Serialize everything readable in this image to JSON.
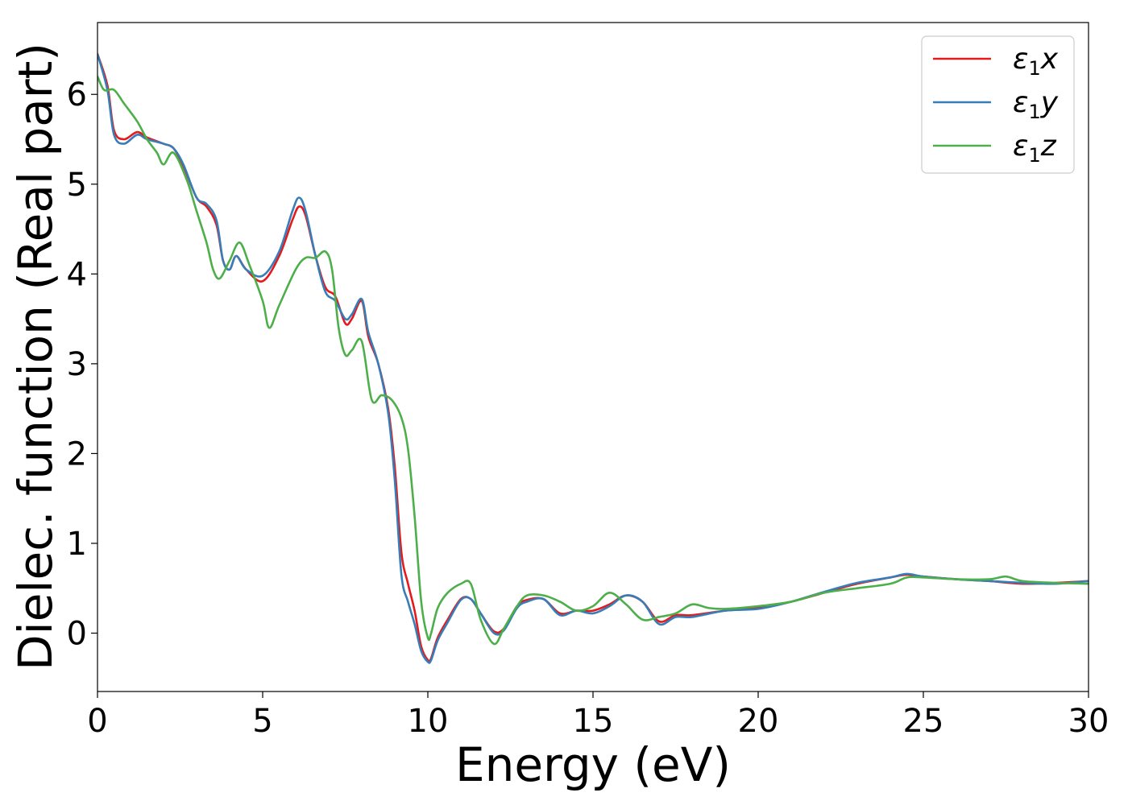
{
  "chart_data": {
    "type": "line",
    "xlabel": "Energy (eV)",
    "ylabel": "Dielec. function (Real part)",
    "xlim": [
      0,
      30
    ],
    "ylim": [
      -0.65,
      6.8
    ],
    "xticks": [
      0,
      5,
      10,
      15,
      20,
      25,
      30
    ],
    "yticks": [
      0,
      1,
      2,
      3,
      4,
      5,
      6
    ],
    "grid": false,
    "legend_position": "top-right",
    "series": [
      {
        "name": "ε1x",
        "legend": {
          "base": "ε",
          "sub": "1",
          "suffix": "x"
        },
        "color": "#e41a1c",
        "x": [
          0,
          0.3,
          0.5,
          0.8,
          1.2,
          1.5,
          2.0,
          2.3,
          2.6,
          3.0,
          3.3,
          3.6,
          3.8,
          4.0,
          4.2,
          4.5,
          5.0,
          5.5,
          5.9,
          6.1,
          6.3,
          6.6,
          6.9,
          7.2,
          7.5,
          7.7,
          8.0,
          8.2,
          8.5,
          8.8,
          9.0,
          9.2,
          9.4,
          9.6,
          9.8,
          10.0,
          10.1,
          10.3,
          10.6,
          11.0,
          11.3,
          11.6,
          12.0,
          12.3,
          12.7,
          13.0,
          13.5,
          14.0,
          14.5,
          15.0,
          15.5,
          16.0,
          16.5,
          17.0,
          17.5,
          18.0,
          19.0,
          20.0,
          21.0,
          22.0,
          23.0,
          24.0,
          24.5,
          25.0,
          26.0,
          27.0,
          28.0,
          29.0,
          30.0
        ],
        "y": [
          6.45,
          6.1,
          5.6,
          5.5,
          5.58,
          5.52,
          5.45,
          5.4,
          5.2,
          4.85,
          4.75,
          4.55,
          4.15,
          4.05,
          4.2,
          4.05,
          3.92,
          4.2,
          4.6,
          4.75,
          4.65,
          4.2,
          3.85,
          3.75,
          3.45,
          3.5,
          3.7,
          3.3,
          3.0,
          2.5,
          1.85,
          0.9,
          0.55,
          0.25,
          -0.15,
          -0.3,
          -0.28,
          -0.05,
          0.15,
          0.38,
          0.38,
          0.22,
          0.02,
          0.05,
          0.3,
          0.37,
          0.38,
          0.22,
          0.25,
          0.25,
          0.32,
          0.42,
          0.35,
          0.13,
          0.2,
          0.2,
          0.25,
          0.28,
          0.35,
          0.45,
          0.55,
          0.62,
          0.65,
          0.63,
          0.6,
          0.58,
          0.55,
          0.56,
          0.58
        ]
      },
      {
        "name": "ε1y",
        "legend": {
          "base": "ε",
          "sub": "1",
          "suffix": "y"
        },
        "color": "#377eb8",
        "x": [
          0,
          0.3,
          0.5,
          0.8,
          1.2,
          1.5,
          2.0,
          2.3,
          2.6,
          3.0,
          3.3,
          3.6,
          3.8,
          4.0,
          4.2,
          4.5,
          5.0,
          5.5,
          5.9,
          6.1,
          6.3,
          6.6,
          6.9,
          7.2,
          7.5,
          7.7,
          8.0,
          8.2,
          8.5,
          8.8,
          9.0,
          9.2,
          9.4,
          9.6,
          9.8,
          10.0,
          10.1,
          10.3,
          10.6,
          11.0,
          11.3,
          11.6,
          12.0,
          12.3,
          12.7,
          13.0,
          13.5,
          14.0,
          14.5,
          15.0,
          15.5,
          16.0,
          16.5,
          17.0,
          17.5,
          18.0,
          19.0,
          20.0,
          21.0,
          22.0,
          23.0,
          24.0,
          24.5,
          25.0,
          26.0,
          27.0,
          28.0,
          29.0,
          30.0
        ],
        "y": [
          6.45,
          6.05,
          5.55,
          5.45,
          5.55,
          5.5,
          5.45,
          5.4,
          5.22,
          4.85,
          4.78,
          4.6,
          4.15,
          4.05,
          4.2,
          4.05,
          3.98,
          4.25,
          4.7,
          4.85,
          4.7,
          4.2,
          3.8,
          3.7,
          3.5,
          3.55,
          3.72,
          3.35,
          3.0,
          2.45,
          1.7,
          0.65,
          0.35,
          0.1,
          -0.2,
          -0.32,
          -0.3,
          -0.08,
          0.12,
          0.37,
          0.38,
          0.22,
          0.0,
          0.03,
          0.28,
          0.35,
          0.38,
          0.2,
          0.25,
          0.22,
          0.3,
          0.42,
          0.35,
          0.1,
          0.18,
          0.18,
          0.25,
          0.27,
          0.35,
          0.46,
          0.56,
          0.62,
          0.66,
          0.63,
          0.6,
          0.58,
          0.56,
          0.55,
          0.58
        ]
      },
      {
        "name": "ε1z",
        "legend": {
          "base": "ε",
          "sub": "1",
          "suffix": "z"
        },
        "color": "#4daf4a",
        "x": [
          0,
          0.2,
          0.5,
          0.8,
          1.2,
          1.5,
          1.8,
          2.0,
          2.3,
          2.7,
          3.0,
          3.3,
          3.5,
          3.7,
          4.0,
          4.3,
          4.6,
          5.0,
          5.2,
          5.5,
          6.0,
          6.3,
          6.6,
          6.9,
          7.1,
          7.3,
          7.5,
          7.7,
          8.0,
          8.3,
          8.6,
          8.9,
          9.2,
          9.4,
          9.6,
          9.8,
          10.0,
          10.1,
          10.3,
          10.6,
          11.0,
          11.3,
          11.6,
          12.0,
          12.3,
          12.7,
          13.0,
          13.5,
          14.0,
          14.5,
          15.0,
          15.5,
          16.0,
          16.5,
          17.0,
          17.5,
          18.0,
          18.5,
          19.0,
          20.0,
          21.0,
          22.0,
          23.0,
          24.0,
          24.5,
          25.0,
          26.0,
          27.0,
          27.5,
          28.0,
          29.0,
          30.0
        ],
        "y": [
          6.2,
          6.05,
          6.05,
          5.9,
          5.7,
          5.5,
          5.35,
          5.22,
          5.35,
          5.05,
          4.7,
          4.35,
          4.05,
          3.95,
          4.15,
          4.35,
          4.1,
          3.7,
          3.4,
          3.65,
          4.05,
          4.18,
          4.18,
          4.25,
          4.05,
          3.4,
          3.1,
          3.15,
          3.25,
          2.6,
          2.65,
          2.6,
          2.4,
          2.05,
          1.3,
          0.35,
          -0.05,
          0.0,
          0.28,
          0.45,
          0.55,
          0.55,
          0.15,
          -0.12,
          0.05,
          0.3,
          0.42,
          0.42,
          0.35,
          0.25,
          0.3,
          0.45,
          0.32,
          0.15,
          0.18,
          0.22,
          0.32,
          0.28,
          0.27,
          0.3,
          0.35,
          0.45,
          0.5,
          0.55,
          0.62,
          0.62,
          0.6,
          0.6,
          0.63,
          0.58,
          0.56,
          0.55
        ]
      }
    ]
  }
}
